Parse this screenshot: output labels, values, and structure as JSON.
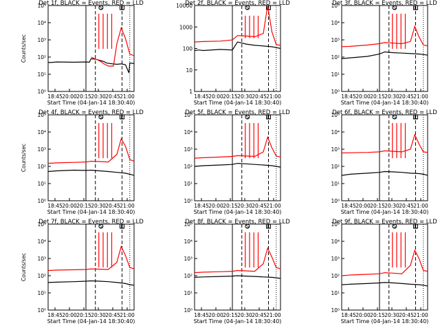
{
  "chart_data": [
    {
      "type": "line",
      "title": "Det 1f, BLACK = Events, RED = LLD",
      "ylabel": "Counts/sec",
      "xlabel": "Start Time (04-Jan-14 18:30:40)",
      "x_ticks": [
        "18:45",
        "20:00",
        "20:15",
        "20:30",
        "20:45",
        "21:00"
      ],
      "y_ticks": [
        "10⁰",
        "10¹",
        "10²",
        "10³",
        "10⁴",
        "10⁵"
      ],
      "y_scale": "log",
      "ylim": [
        1,
        100000
      ],
      "markers": [
        "S",
        "E"
      ],
      "series": [
        {
          "color": "#000000",
          "x": [
            0,
            0.02,
            0.1,
            0.3,
            0.44,
            0.48,
            0.5,
            0.55,
            0.6,
            0.62,
            0.65,
            0.68,
            0.75,
            0.8,
            0.85,
            0.9,
            0.94,
            0.95,
            1
          ],
          "y": [
            50,
            48,
            52,
            50,
            52,
            50,
            80,
            75,
            65,
            60,
            55,
            45,
            40,
            38,
            40,
            36,
            12,
            45,
            42
          ]
        },
        {
          "color": "#ff0000",
          "x": [
            0.5,
            0.6,
            0.65,
            0.7,
            0.72,
            0.74,
            0.76,
            0.8,
            0.85,
            0.9,
            0.95,
            1
          ],
          "y": [
            100,
            60,
            40,
            30,
            30,
            30,
            30,
            600,
            5000,
            1200,
            150,
            120
          ]
        }
      ]
    },
    {
      "type": "line",
      "title": "Det 2f, BLACK = Events, RED = LLD",
      "ylabel": "",
      "xlabel": "Start Time (04-Jan-14 18:30:40)",
      "x_ticks": [
        "18:45",
        "20:00",
        "20:15",
        "20:30",
        "20:45",
        "21:00"
      ],
      "y_ticks": [
        "1",
        "10",
        "100",
        "1000",
        "10000"
      ],
      "y_scale": "log",
      "ylim": [
        1,
        10000
      ],
      "markers": [
        "S",
        "E"
      ],
      "series": [
        {
          "color": "#000000",
          "x": [
            0,
            0.05,
            0.1,
            0.3,
            0.44,
            0.5,
            0.6,
            0.7,
            0.8,
            0.9,
            0.95,
            1
          ],
          "y": [
            80,
            85,
            80,
            90,
            85,
            200,
            160,
            140,
            130,
            120,
            110,
            100
          ]
        },
        {
          "color": "#ff0000",
          "x": [
            0,
            0.1,
            0.3,
            0.44,
            0.5,
            0.6,
            0.7,
            0.8,
            0.85,
            0.9,
            0.95,
            1
          ],
          "y": [
            200,
            210,
            220,
            250,
            400,
            380,
            350,
            500,
            10000,
            600,
            150,
            140
          ]
        }
      ]
    },
    {
      "type": "line",
      "title": "Det 3f, BLACK = Events, RED = LLD",
      "ylabel": "",
      "xlabel": "Start Time (04-Jan-14 18:30:40)",
      "x_ticks": [
        "18:45",
        "20:00",
        "20:15",
        "20:30",
        "20:45",
        "21:00"
      ],
      "y_ticks": [
        "10⁰",
        "10¹",
        "10²",
        "10³",
        "10⁴",
        "10⁵"
      ],
      "y_scale": "log",
      "ylim": [
        1,
        100000
      ],
      "markers": [
        "S",
        "E"
      ],
      "series": [
        {
          "color": "#000000",
          "x": [
            0,
            0.1,
            0.3,
            0.44,
            0.5,
            0.6,
            0.7,
            0.8,
            0.9,
            0.95,
            1
          ],
          "y": [
            80,
            90,
            110,
            150,
            200,
            180,
            170,
            160,
            150,
            140,
            130
          ]
        },
        {
          "color": "#ff0000",
          "x": [
            0,
            0.1,
            0.3,
            0.44,
            0.5,
            0.6,
            0.7,
            0.8,
            0.85,
            0.9,
            0.95,
            1
          ],
          "y": [
            400,
            420,
            500,
            600,
            700,
            650,
            600,
            800,
            6000,
            1500,
            500,
            450
          ]
        }
      ]
    },
    {
      "type": "line",
      "title": "Det 4f, BLACK = Events, RED = LLD",
      "ylabel": "Counts/sec",
      "xlabel": "Start Time (04-Jan-14 18:30:40)",
      "x_ticks": [
        "18:45",
        "20:00",
        "20:15",
        "20:30",
        "20:45",
        "21:00"
      ],
      "y_ticks": [
        "10⁰",
        "10¹",
        "10²",
        "10³",
        "10⁴",
        "10⁵"
      ],
      "y_scale": "log",
      "ylim": [
        1,
        100000
      ],
      "markers": [
        "S",
        "E"
      ],
      "series": [
        {
          "color": "#000000",
          "x": [
            0,
            0.1,
            0.3,
            0.44,
            0.5,
            0.6,
            0.7,
            0.8,
            0.9,
            0.95,
            1
          ],
          "y": [
            50,
            55,
            60,
            58,
            60,
            55,
            50,
            45,
            40,
            35,
            30
          ]
        },
        {
          "color": "#ff0000",
          "x": [
            0,
            0.1,
            0.3,
            0.44,
            0.5,
            0.6,
            0.7,
            0.8,
            0.85,
            0.9,
            0.95,
            1
          ],
          "y": [
            150,
            160,
            170,
            180,
            200,
            190,
            180,
            500,
            4000,
            1500,
            250,
            200
          ]
        }
      ]
    },
    {
      "type": "line",
      "title": "Det 5f, BLACK = Events, RED = LLD",
      "ylabel": "",
      "xlabel": "Start Time (04-Jan-14 18:30:40)",
      "x_ticks": [
        "18:45",
        "20:00",
        "20:15",
        "20:30",
        "20:45",
        "21:00"
      ],
      "y_ticks": [
        "10⁰",
        "10¹",
        "10²",
        "10³",
        "10⁴",
        "10⁵"
      ],
      "y_scale": "log",
      "ylim": [
        1,
        100000
      ],
      "markers": [
        "S",
        "E"
      ],
      "series": [
        {
          "color": "#000000",
          "x": [
            0,
            0.1,
            0.3,
            0.44,
            0.5,
            0.6,
            0.7,
            0.8,
            0.9,
            0.95,
            1
          ],
          "y": [
            100,
            110,
            120,
            130,
            150,
            140,
            130,
            120,
            110,
            100,
            90
          ]
        },
        {
          "color": "#ff0000",
          "x": [
            0,
            0.1,
            0.3,
            0.44,
            0.5,
            0.6,
            0.7,
            0.8,
            0.85,
            0.9,
            0.95,
            1
          ],
          "y": [
            300,
            320,
            350,
            380,
            420,
            400,
            380,
            700,
            5000,
            1200,
            400,
            350
          ]
        }
      ]
    },
    {
      "type": "line",
      "title": "Det 6f, BLACK = Events, RED = LLD",
      "ylabel": "",
      "xlabel": "Start Time (04-Jan-14 18:30:40)",
      "x_ticks": [
        "18:45",
        "20:00",
        "20:15",
        "20:30",
        "20:45",
        "21:00"
      ],
      "y_ticks": [
        "10⁰",
        "10¹",
        "10²",
        "10³",
        "10⁴",
        "10⁵"
      ],
      "y_scale": "log",
      "ylim": [
        1,
        100000
      ],
      "markers": [
        "S",
        "E"
      ],
      "series": [
        {
          "color": "#000000",
          "x": [
            0,
            0.1,
            0.3,
            0.44,
            0.5,
            0.6,
            0.7,
            0.8,
            0.9,
            0.95,
            1
          ],
          "y": [
            30,
            35,
            40,
            45,
            50,
            48,
            45,
            40,
            38,
            35,
            30
          ]
        },
        {
          "color": "#ff0000",
          "x": [
            0,
            0.1,
            0.3,
            0.44,
            0.5,
            0.6,
            0.7,
            0.8,
            0.85,
            0.9,
            0.95,
            1
          ],
          "y": [
            600,
            620,
            650,
            700,
            800,
            750,
            700,
            1000,
            7000,
            2000,
            700,
            650
          ]
        }
      ]
    },
    {
      "type": "line",
      "title": "Det 7f, BLACK = Events, RED = LLD",
      "ylabel": "Counts/sec",
      "xlabel": "Start Time (04-Jan-14 18:30:40)",
      "x_ticks": [
        "18:45",
        "20:00",
        "20:15",
        "20:30",
        "20:45",
        "21:00"
      ],
      "y_ticks": [
        "10⁰",
        "10¹",
        "10²",
        "10³",
        "10⁴",
        "10⁵"
      ],
      "y_scale": "log",
      "ylim": [
        1,
        100000
      ],
      "markers": [
        "S",
        "E"
      ],
      "series": [
        {
          "color": "#000000",
          "x": [
            0,
            0.1,
            0.3,
            0.44,
            0.5,
            0.6,
            0.7,
            0.8,
            0.9,
            0.95,
            1
          ],
          "y": [
            40,
            42,
            45,
            48,
            50,
            48,
            45,
            40,
            35,
            30,
            28
          ]
        },
        {
          "color": "#ff0000",
          "x": [
            0,
            0.1,
            0.3,
            0.44,
            0.5,
            0.6,
            0.7,
            0.8,
            0.85,
            0.9,
            0.95,
            1
          ],
          "y": [
            200,
            210,
            220,
            230,
            250,
            240,
            230,
            600,
            5000,
            1500,
            300,
            250
          ]
        }
      ]
    },
    {
      "type": "line",
      "title": "Det 8f, BLACK = Events, RED = LLD",
      "ylabel": "",
      "xlabel": "Start Time (04-Jan-14 18:30:40)",
      "x_ticks": [
        "18:45",
        "20:00",
        "20:15",
        "20:30",
        "20:45",
        "21:00"
      ],
      "y_ticks": [
        "10⁰",
        "10¹",
        "10²",
        "10³",
        "10⁴",
        "10⁵"
      ],
      "y_scale": "log",
      "ylim": [
        1,
        100000
      ],
      "markers": [
        "S",
        "E"
      ],
      "series": [
        {
          "color": "#000000",
          "x": [
            0,
            0.1,
            0.3,
            0.44,
            0.5,
            0.6,
            0.7,
            0.8,
            0.9,
            0.95,
            1
          ],
          "y": [
            80,
            85,
            90,
            95,
            100,
            95,
            90,
            85,
            80,
            75,
            70
          ]
        },
        {
          "color": "#ff0000",
          "x": [
            0,
            0.1,
            0.3,
            0.44,
            0.5,
            0.6,
            0.7,
            0.8,
            0.85,
            0.9,
            0.95,
            1
          ],
          "y": [
            150,
            160,
            170,
            180,
            200,
            190,
            180,
            500,
            4000,
            1200,
            300,
            250
          ]
        }
      ]
    },
    {
      "type": "line",
      "title": "Det 9f, BLACK = Events, RED = LLD",
      "ylabel": "",
      "xlabel": "Start Time (04-Jan-14 18:30:40)",
      "x_ticks": [
        "18:45",
        "20:00",
        "20:15",
        "20:30",
        "20:45",
        "21:00"
      ],
      "y_ticks": [
        "10⁰",
        "10¹",
        "10²",
        "10³",
        "10⁴",
        "10⁵"
      ],
      "y_scale": "log",
      "ylim": [
        1,
        100000
      ],
      "markers": [
        "S",
        "E"
      ],
      "series": [
        {
          "color": "#000000",
          "x": [
            0,
            0.1,
            0.3,
            0.44,
            0.5,
            0.6,
            0.7,
            0.8,
            0.9,
            0.95,
            1
          ],
          "y": [
            30,
            32,
            35,
            38,
            40,
            38,
            35,
            32,
            30,
            28,
            25
          ]
        },
        {
          "color": "#ff0000",
          "x": [
            0,
            0.1,
            0.3,
            0.44,
            0.5,
            0.6,
            0.7,
            0.8,
            0.85,
            0.9,
            0.95,
            1
          ],
          "y": [
            100,
            110,
            120,
            130,
            150,
            140,
            130,
            400,
            3000,
            1000,
            200,
            180
          ]
        }
      ]
    }
  ]
}
